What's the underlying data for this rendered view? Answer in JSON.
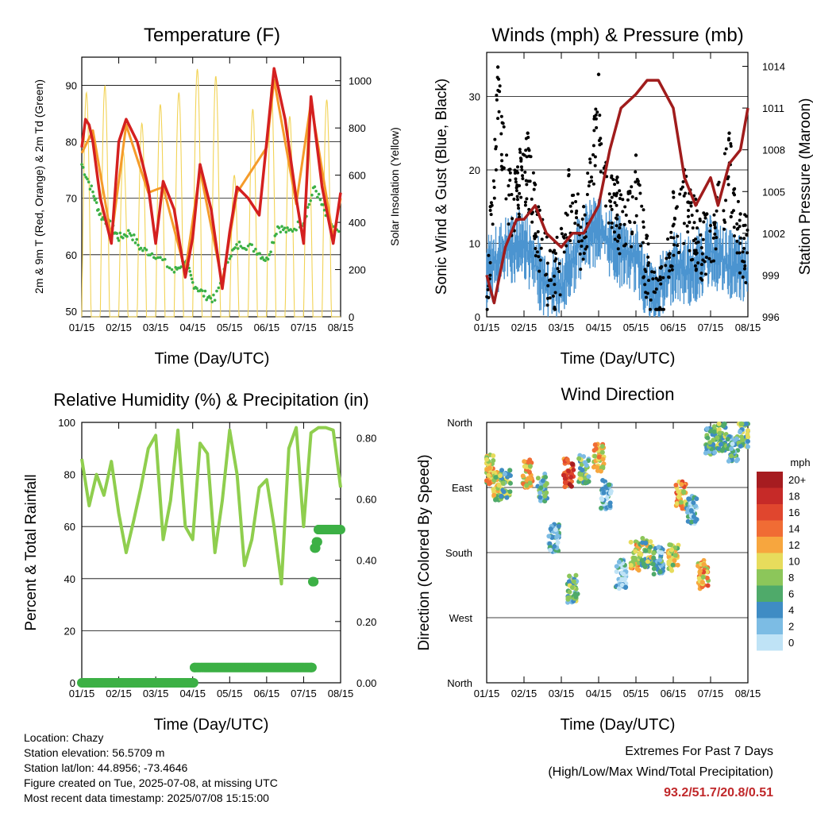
{
  "colors": {
    "temp_red": "#d42020",
    "temp_orange": "#f59b2a",
    "dewpoint_green": "#3cb045",
    "insolation_yellow": "#f2d356",
    "wind_blue": "#4b94d0",
    "gust_black": "#000000",
    "pressure_maroon": "#a01c1c",
    "rh_green": "#8fce4e",
    "rain_green": "#3cb045",
    "extremes_red": "#c0282a"
  },
  "chart_data": [
    {
      "id": "temperature",
      "type": "line",
      "title": "Temperature (F)",
      "xlabel": "Time (Day/UTC)",
      "ylabel_left": "2m & 9m T (Red, Orange) & 2m Td (Green)",
      "ylabel_right": "Solar Insolation (Yellow)",
      "x_ticks": [
        "01/15",
        "02/15",
        "03/15",
        "04/15",
        "05/15",
        "06/15",
        "07/15",
        "08/15"
      ],
      "ylim_left": [
        49,
        95
      ],
      "yticks_left": [
        50,
        60,
        70,
        80,
        90
      ],
      "ylim_right": [
        0,
        1100
      ],
      "yticks_right": [
        0,
        200,
        400,
        600,
        800,
        1000
      ],
      "grid": "horizontal",
      "series": [
        {
          "name": "2m T",
          "color": "#d42020",
          "x": [
            0,
            0.1,
            0.2,
            0.3,
            0.5,
            0.8,
            1.0,
            1.2,
            1.5,
            1.8,
            2.0,
            2.2,
            2.5,
            2.8,
            3.0,
            3.2,
            3.5,
            3.8,
            4.0,
            4.2,
            4.5,
            4.8,
            5.0,
            5.2,
            5.5,
            5.8,
            6.0,
            6.2,
            6.5,
            6.8,
            7.0
          ],
          "y": [
            79,
            84,
            83,
            80,
            70,
            62,
            80,
            84,
            80,
            72,
            62,
            73,
            68,
            56,
            63,
            76,
            68,
            54,
            64,
            72,
            70,
            67,
            80,
            93,
            84,
            70,
            62,
            88,
            72,
            62,
            71
          ]
        },
        {
          "name": "9m T",
          "color": "#f59b2a",
          "x": [
            0,
            0.3,
            0.8,
            1.2,
            1.8,
            2.2,
            2.8,
            3.2,
            3.8,
            4.2,
            5.0,
            5.2,
            5.8,
            6.2,
            6.8,
            7.0
          ],
          "y": [
            78,
            82,
            63,
            83,
            71,
            72,
            57,
            75,
            55,
            71,
            79,
            91,
            69,
            87,
            63,
            70
          ]
        },
        {
          "name": "2m Td",
          "color": "#3cb045",
          "x": [
            0,
            0.3,
            0.5,
            0.8,
            1.0,
            1.3,
            1.6,
            2.0,
            2.5,
            2.8,
            3.0,
            3.3,
            3.6,
            4.0,
            4.3,
            4.7,
            5.0,
            5.3,
            5.6,
            6.0,
            6.3,
            6.6,
            7.0
          ],
          "y": [
            76,
            71,
            67,
            65,
            63,
            64,
            61,
            60,
            57,
            59,
            55,
            53,
            52,
            60,
            62,
            61,
            59,
            65,
            64,
            66,
            72,
            67,
            63
          ]
        },
        {
          "name": "Solar Insolation",
          "color": "#f2d356",
          "axis": "right",
          "daily_peak": [
            950,
            980,
            700,
            820,
            900,
            950,
            1050,
            1020,
            600,
            880,
            980,
            850,
            800,
            920
          ]
        }
      ]
    },
    {
      "id": "winds",
      "type": "scatter",
      "title": "Winds (mph) & Pressure (mb)",
      "xlabel": "Time (Day/UTC)",
      "ylabel_left": "Sonic Wind & Gust (Blue, Black)",
      "ylabel_right": "Station Pressure (Maroon)",
      "x_ticks": [
        "01/15",
        "02/15",
        "03/15",
        "04/15",
        "05/15",
        "06/15",
        "07/15",
        "08/15"
      ],
      "ylim_left": [
        0,
        36
      ],
      "yticks_left": [
        0,
        10,
        20,
        30
      ],
      "ylim_right": [
        996,
        1015
      ],
      "yticks_right": [
        996,
        999,
        1002,
        1005,
        1008,
        1011,
        1014
      ],
      "grid": "horizontal",
      "series": [
        {
          "name": "Sonic Wind",
          "color": "#4b94d0",
          "x": [
            0,
            0.5,
            1.0,
            1.5,
            2.0,
            2.5,
            3.0,
            3.5,
            4.0,
            4.5,
            5.0,
            5.5,
            6.0,
            6.5,
            7.0
          ],
          "y": [
            6,
            9,
            10,
            5,
            4,
            10,
            12,
            9,
            8,
            2,
            7,
            6,
            9,
            7,
            6
          ]
        },
        {
          "name": "Gust",
          "color": "#000000",
          "x": [
            0.1,
            0.3,
            0.6,
            1.1,
            1.3,
            1.7,
            2.0,
            2.2,
            2.6,
            3.0,
            3.2,
            3.5,
            3.8,
            4.0,
            4.3,
            4.6,
            5.0,
            5.3,
            5.6,
            5.9,
            6.2,
            6.5,
            6.8
          ],
          "y": [
            15,
            34,
            20,
            25,
            18,
            9,
            12,
            20,
            15,
            33,
            21,
            19,
            17,
            22,
            11,
            5,
            17,
            20,
            16,
            14,
            18,
            25,
            14
          ]
        },
        {
          "name": "Station Pressure",
          "color": "#a01c1c",
          "axis": "right",
          "x": [
            0,
            0.2,
            0.5,
            0.8,
            1.0,
            1.3,
            1.6,
            2.0,
            2.3,
            2.6,
            3.0,
            3.3,
            3.6,
            4.0,
            4.3,
            4.6,
            5.0,
            5.3,
            5.6,
            6.0,
            6.2,
            6.5,
            6.8,
            7.0
          ],
          "y": [
            999,
            997,
            1001,
            1003,
            1003,
            1004,
            1002,
            1001,
            1002,
            1002,
            1004,
            1008,
            1011,
            1012,
            1013,
            1013,
            1011,
            1006,
            1004,
            1006,
            1004,
            1007,
            1008,
            1011
          ]
        }
      ]
    },
    {
      "id": "humidity",
      "type": "line",
      "title": "Relative Humidity (%) & Precipitation (in)",
      "xlabel": "Time (Day/UTC)",
      "ylabel_left": "Percent & Total Rainfall",
      "ylim_left": [
        0,
        100
      ],
      "yticks_left": [
        0,
        20,
        40,
        60,
        80,
        100
      ],
      "ylim_right": [
        0,
        0.85
      ],
      "yticks_right": [
        "0.00",
        "0.20",
        "0.40",
        "0.60",
        "0.80"
      ],
      "x_ticks": [
        "01/15",
        "02/15",
        "03/15",
        "04/15",
        "05/15",
        "06/15",
        "07/15",
        "08/15"
      ],
      "grid": "horizontal",
      "series": [
        {
          "name": "Relative Humidity",
          "color": "#8fce4e",
          "x": [
            0,
            0.2,
            0.4,
            0.6,
            0.8,
            1.0,
            1.2,
            1.4,
            1.6,
            1.8,
            2.0,
            2.2,
            2.4,
            2.6,
            2.8,
            3.0,
            3.2,
            3.4,
            3.6,
            3.8,
            4.0,
            4.2,
            4.4,
            4.6,
            4.8,
            5.0,
            5.2,
            5.4,
            5.6,
            5.8,
            6.0,
            6.2,
            6.4,
            6.6,
            6.8,
            7.0
          ],
          "y": [
            86,
            68,
            80,
            72,
            85,
            65,
            50,
            62,
            75,
            90,
            95,
            55,
            70,
            97,
            60,
            55,
            92,
            88,
            50,
            70,
            97,
            80,
            45,
            55,
            75,
            78,
            60,
            38,
            90,
            98,
            60,
            96,
            98,
            98,
            97,
            75
          ]
        },
        {
          "name": "Total Rainfall",
          "color": "#3cb045",
          "axis": "right",
          "x": [
            0,
            3.0,
            3.05,
            6.2,
            6.25,
            6.3,
            6.35,
            6.4,
            7.0
          ],
          "y": [
            0,
            0,
            0.05,
            0.05,
            0.33,
            0.44,
            0.46,
            0.5,
            0.5
          ]
        }
      ]
    },
    {
      "id": "direction",
      "type": "scatter",
      "title": "Wind Direction",
      "xlabel": "Time (Day/UTC)",
      "ylabel_left": "Direction (Colored By Speed)",
      "x_ticks": [
        "01/15",
        "02/15",
        "03/15",
        "04/15",
        "05/15",
        "06/15",
        "07/15",
        "08/15"
      ],
      "y_ticks": [
        "North",
        "West",
        "South",
        "East",
        "North"
      ],
      "ylim": [
        0,
        360
      ],
      "grid": "horizontal",
      "legend_title": "mph",
      "legend_labels": [
        "20+",
        "18",
        "16",
        "14",
        "12",
        "10",
        "8",
        "6",
        "4",
        "2",
        "0"
      ],
      "legend_colors": [
        "#a61c20",
        "#c62a28",
        "#e0462e",
        "#f06c34",
        "#f7a63e",
        "#e7dc5c",
        "#8cc65a",
        "#4faa6a",
        "#3f8cc4",
        "#7cbce4",
        "#bfe3f6"
      ],
      "clusters": [
        {
          "x": 0.05,
          "dir": 295,
          "speed": 10
        },
        {
          "x": 0.3,
          "dir": 272,
          "speed": 9
        },
        {
          "x": 0.5,
          "dir": 275,
          "speed": 6
        },
        {
          "x": 1.1,
          "dir": 290,
          "speed": 11
        },
        {
          "x": 1.5,
          "dir": 270,
          "speed": 5
        },
        {
          "x": 1.8,
          "dir": 200,
          "speed": 3
        },
        {
          "x": 2.2,
          "dir": 290,
          "speed": 16
        },
        {
          "x": 2.3,
          "dir": 130,
          "speed": 6
        },
        {
          "x": 2.6,
          "dir": 295,
          "speed": 6
        },
        {
          "x": 3.0,
          "dir": 310,
          "speed": 11
        },
        {
          "x": 3.2,
          "dir": 260,
          "speed": 3
        },
        {
          "x": 3.6,
          "dir": 150,
          "speed": 2
        },
        {
          "x": 4.0,
          "dir": 175,
          "speed": 10
        },
        {
          "x": 4.3,
          "dir": 180,
          "speed": 8
        },
        {
          "x": 4.6,
          "dir": 170,
          "speed": 4
        },
        {
          "x": 5.0,
          "dir": 175,
          "speed": 9
        },
        {
          "x": 5.2,
          "dir": 260,
          "speed": 12
        },
        {
          "x": 5.5,
          "dir": 240,
          "speed": 3
        },
        {
          "x": 5.8,
          "dir": 150,
          "speed": 12
        },
        {
          "x": 6.0,
          "dir": 335,
          "speed": 5
        },
        {
          "x": 6.3,
          "dir": 340,
          "speed": 7
        },
        {
          "x": 6.6,
          "dir": 325,
          "speed": 4
        },
        {
          "x": 6.9,
          "dir": 345,
          "speed": 6
        }
      ]
    }
  ],
  "footer": {
    "location": "Location: Chazy",
    "elevation": "Station elevation: 56.5709 m",
    "latlon": "Station lat/lon: 44.8956; -73.4646",
    "created": "Figure created on Tue, 2025-07-08, at missing UTC",
    "recent": "Most recent data timestamp: 2025/07/08 15:15:00",
    "extremes_title": "Extremes For Past 7 Days",
    "extremes_sub": "(High/Low/Max Wind/Total Precipitation)",
    "extremes_values": "93.2/51.7/20.8/0.51"
  }
}
